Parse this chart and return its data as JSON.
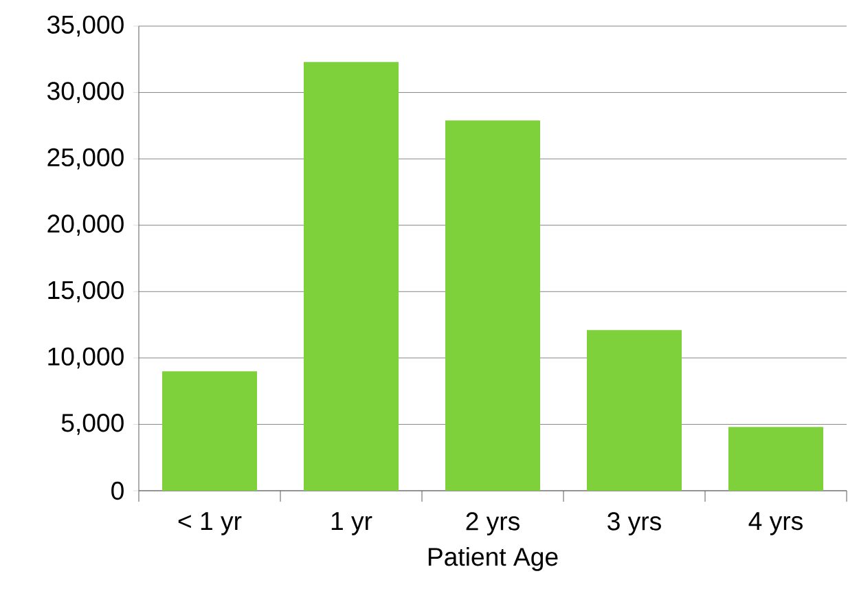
{
  "chart_data": {
    "type": "bar",
    "xlabel": "Patient Age",
    "categories": [
      "< 1 yr",
      "1 yr",
      "2 yrs",
      "3 yrs",
      "4 yrs"
    ],
    "values": [
      9000,
      32300,
      27900,
      12100,
      4800
    ],
    "color": "#7fd13b",
    "ylim": [
      0,
      35000
    ],
    "yticks": [
      0,
      {
        "value": 5000,
        "label": "5,000"
      },
      {
        "value": 10000,
        "label": "10,000"
      },
      {
        "value": 15000,
        "label": "15,000"
      },
      {
        "value": 20000,
        "label": "20,000"
      },
      {
        "value": 25000,
        "label": "25,000"
      },
      {
        "value": 30000,
        "label": "30,000"
      },
      {
        "value": 35000,
        "label": "35,000"
      }
    ],
    "grid": "y"
  }
}
